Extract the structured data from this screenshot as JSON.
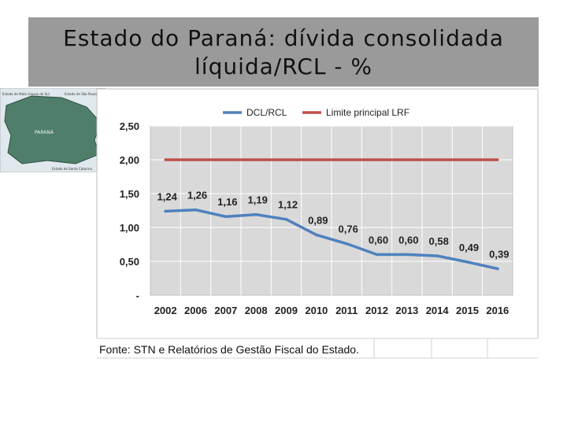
{
  "title": "Estado do Paraná: dívida consolidada líquida/RCL - %",
  "map": {
    "state_label": "PARANÁ",
    "labels": [
      "Estado de Mato Grosso do Sul",
      "Estado de São Paulo",
      "Estado de Santa Catarina"
    ]
  },
  "source": "Fonte: STN e Relatórios de Gestão Fiscal do Estado.",
  "colors": {
    "dcl": "#4f81bd",
    "limit": "#c0504d",
    "plot_bg": "#d9d9d9",
    "title_bg": "#9a9a9a"
  },
  "chart_data": {
    "type": "line",
    "title": "",
    "xlabel": "",
    "ylabel": "",
    "categories": [
      "2002",
      "2006",
      "2007",
      "2008",
      "2009",
      "2010",
      "2011",
      "2012",
      "2013",
      "2014",
      "2015",
      "2016"
    ],
    "series": [
      {
        "name": "DCL/RCL",
        "values": [
          1.24,
          1.26,
          1.16,
          1.19,
          1.12,
          0.89,
          0.76,
          0.6,
          0.6,
          0.58,
          0.49,
          0.39
        ],
        "labels": [
          "1,24",
          "1,26",
          "1,16",
          "1,19",
          "1,12",
          "0,89",
          "0,76",
          "0,60",
          "0,60",
          "0,58",
          "0,49",
          "0,39"
        ]
      },
      {
        "name": "Limite principal LRF",
        "values": [
          2,
          2,
          2,
          2,
          2,
          2,
          2,
          2,
          2,
          2,
          2,
          2
        ]
      }
    ],
    "ylim": [
      0,
      2.5
    ],
    "yticks": [
      0,
      0.5,
      1.0,
      1.5,
      2.0,
      2.5
    ],
    "ytick_labels": [
      "-",
      "0,50",
      "1,00",
      "1,50",
      "2,00",
      "2,50"
    ],
    "grid": true,
    "legend": "top"
  }
}
